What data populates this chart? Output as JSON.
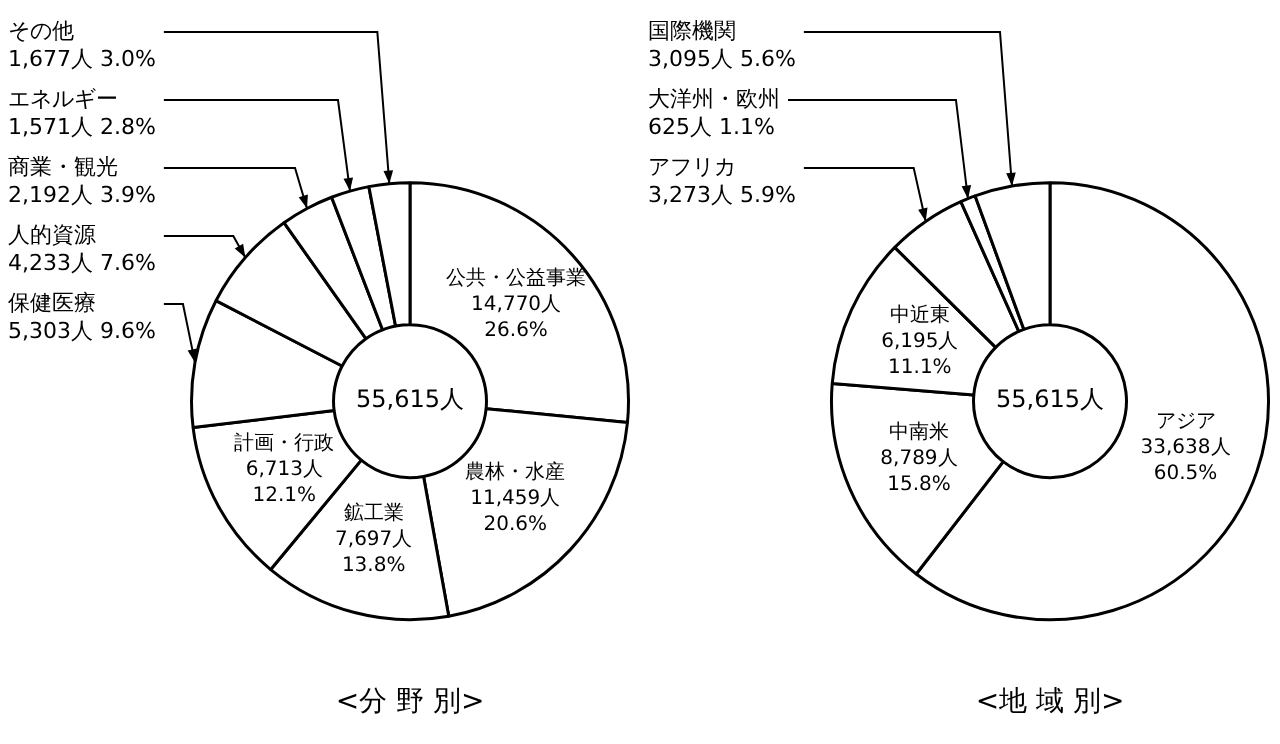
{
  "chart_data": [
    {
      "type": "donut",
      "title": "<分 野 別>",
      "categories": [
        "公共・公益事業",
        "農林・水産",
        "鉱工業",
        "計画・行政",
        "保健医療",
        "人的資源",
        "商業・観光",
        "エネルギー",
        "その他"
      ],
      "values": [
        14770,
        11459,
        7697,
        6713,
        5303,
        4233,
        2192,
        1571,
        1677
      ],
      "value_labels": [
        "14,770人 26.6%",
        "11,459人 20.6%",
        "7,697人 13.8%",
        "6,713人 12.1%",
        "5,303人 9.6%",
        "4,233人 7.6%",
        "2,192人 3.9%",
        "1,571人 2.8%",
        "1,677人 3.0%"
      ],
      "colors": [
        "#ffffff",
        "#ffffff",
        "#ffffff",
        "#ffffff",
        "#ffffff",
        "#ffffff",
        "#ffffff",
        "#ffffff",
        "#ffffff"
      ],
      "annotations": [
        "55,615人"
      ]
    },
    {
      "type": "donut",
      "title": "<地 域 別>",
      "categories": [
        "アジア",
        "中南米",
        "中近東",
        "アフリカ",
        "大洋州・欧州",
        "国際機関"
      ],
      "values": [
        33638,
        8789,
        6195,
        3273,
        625,
        3095
      ],
      "value_labels": [
        "33,638人 60.5%",
        "8,789人 15.8%",
        "6,195人 11.1%",
        "3,273人 5.9%",
        "625人 1.1%",
        "3,095人 5.6%"
      ],
      "colors": [
        "#ffffff",
        "#ffffff",
        "#ffffff",
        "#ffffff",
        "#ffffff",
        "#ffffff"
      ],
      "annotations": [
        "55,615人"
      ]
    }
  ]
}
